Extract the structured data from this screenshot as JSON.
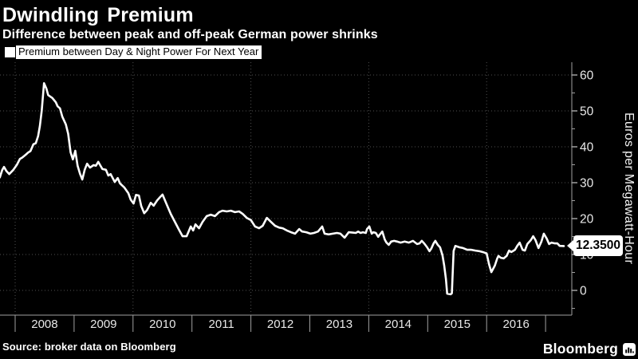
{
  "header": {
    "title": "Dwindling Premium",
    "subtitle": "Difference between peak and off-peak German power shrinks"
  },
  "legend": {
    "label": "Premium between Day & Night Power For Next Year"
  },
  "footer": {
    "source": "Source: broker data on Bloomberg",
    "brand": "Bloomberg"
  },
  "colors": {
    "background": "#000000",
    "line": "#ffffff",
    "grid": "#515151",
    "axis": "#a0a0a0",
    "tick_label": "#e8e8e8",
    "callout_bg": "#ffffff",
    "callout_text": "#000000"
  },
  "chart_data": {
    "type": "line",
    "title": "Dwindling Premium",
    "series_name": "Premium between Day & Night Power For Next Year",
    "ylabel": "Euros per Megawatt-Hour",
    "last_price_label": "12.3500",
    "last_price_value": 12.35,
    "ylim": [
      -7,
      63.5
    ],
    "xlim": [
      2007.74,
      2017.45
    ],
    "y_ticks": [
      0,
      10,
      20,
      30,
      40,
      50,
      60
    ],
    "y_minor_ticks": [
      -5,
      5,
      15,
      25,
      35,
      45,
      55
    ],
    "x_tick_years": [
      2008,
      2009,
      2010,
      2011,
      2012,
      2013,
      2014,
      2015,
      2016,
      2017
    ],
    "x_band_labels": [
      "2008",
      "2009",
      "2010",
      "2011",
      "2012",
      "2013",
      "2014",
      "2015",
      "2016"
    ],
    "x_gridline_years": [
      2008,
      2010,
      2012,
      2014,
      2016
    ],
    "grid": true,
    "legend_position": "top-left",
    "points": [
      [
        2007.74,
        31.5
      ],
      [
        2007.78,
        33.5
      ],
      [
        2007.81,
        34.4
      ],
      [
        2007.85,
        33.3
      ],
      [
        2007.9,
        32.4
      ],
      [
        2007.97,
        33.6
      ],
      [
        2008.03,
        35.0
      ],
      [
        2008.08,
        36.6
      ],
      [
        2008.12,
        37.0
      ],
      [
        2008.18,
        37.8
      ],
      [
        2008.22,
        38.4
      ],
      [
        2008.26,
        38.8
      ],
      [
        2008.31,
        40.7
      ],
      [
        2008.35,
        41.0
      ],
      [
        2008.39,
        43.0
      ],
      [
        2008.42,
        45.8
      ],
      [
        2008.45,
        50.0
      ],
      [
        2008.49,
        57.7
      ],
      [
        2008.53,
        56.2
      ],
      [
        2008.56,
        54.4
      ],
      [
        2008.63,
        53.6
      ],
      [
        2008.69,
        52.4
      ],
      [
        2008.72,
        51.3
      ],
      [
        2008.76,
        50.7
      ],
      [
        2008.8,
        48.4
      ],
      [
        2008.86,
        46.2
      ],
      [
        2008.9,
        43.6
      ],
      [
        2008.94,
        38.5
      ],
      [
        2008.98,
        36.5
      ],
      [
        2009.02,
        38.9
      ],
      [
        2009.06,
        34.7
      ],
      [
        2009.1,
        32.5
      ],
      [
        2009.14,
        30.9
      ],
      [
        2009.18,
        33.6
      ],
      [
        2009.22,
        35.3
      ],
      [
        2009.27,
        34.2
      ],
      [
        2009.33,
        34.9
      ],
      [
        2009.37,
        34.7
      ],
      [
        2009.41,
        35.8
      ],
      [
        2009.48,
        33.8
      ],
      [
        2009.54,
        33.6
      ],
      [
        2009.58,
        32.0
      ],
      [
        2009.62,
        32.4
      ],
      [
        2009.69,
        30.2
      ],
      [
        2009.74,
        31.3
      ],
      [
        2009.78,
        29.8
      ],
      [
        2009.85,
        28.7
      ],
      [
        2009.92,
        27.1
      ],
      [
        2009.96,
        25.3
      ],
      [
        2010.01,
        24.2
      ],
      [
        2010.05,
        26.6
      ],
      [
        2010.1,
        26.4
      ],
      [
        2010.14,
        23.5
      ],
      [
        2010.19,
        21.5
      ],
      [
        2010.24,
        22.4
      ],
      [
        2010.3,
        24.4
      ],
      [
        2010.35,
        23.6
      ],
      [
        2010.41,
        25.1
      ],
      [
        2010.46,
        26.0
      ],
      [
        2010.5,
        26.7
      ],
      [
        2010.57,
        24.0
      ],
      [
        2010.64,
        21.3
      ],
      [
        2010.71,
        19.1
      ],
      [
        2010.78,
        16.9
      ],
      [
        2010.84,
        15.1
      ],
      [
        2010.91,
        15.1
      ],
      [
        2010.98,
        17.8
      ],
      [
        2011.02,
        16.7
      ],
      [
        2011.06,
        18.4
      ],
      [
        2011.12,
        17.3
      ],
      [
        2011.18,
        19.1
      ],
      [
        2011.25,
        20.7
      ],
      [
        2011.32,
        21.1
      ],
      [
        2011.39,
        20.7
      ],
      [
        2011.46,
        21.8
      ],
      [
        2011.52,
        22.2
      ],
      [
        2011.59,
        22.0
      ],
      [
        2011.66,
        22.2
      ],
      [
        2011.73,
        21.8
      ],
      [
        2011.8,
        22.0
      ],
      [
        2011.86,
        21.3
      ],
      [
        2011.93,
        20.2
      ],
      [
        2012.0,
        19.6
      ],
      [
        2012.07,
        17.8
      ],
      [
        2012.14,
        17.3
      ],
      [
        2012.2,
        18.0
      ],
      [
        2012.27,
        20.2
      ],
      [
        2012.34,
        19.1
      ],
      [
        2012.41,
        18.0
      ],
      [
        2012.48,
        17.5
      ],
      [
        2012.54,
        17.3
      ],
      [
        2012.61,
        16.7
      ],
      [
        2012.68,
        16.2
      ],
      [
        2012.75,
        15.8
      ],
      [
        2012.82,
        17.1
      ],
      [
        2012.87,
        16.4
      ],
      [
        2012.94,
        16.2
      ],
      [
        2013.01,
        15.8
      ],
      [
        2013.07,
        16.0
      ],
      [
        2013.14,
        16.4
      ],
      [
        2013.21,
        17.8
      ],
      [
        2013.25,
        15.8
      ],
      [
        2013.32,
        15.6
      ],
      [
        2013.39,
        15.8
      ],
      [
        2013.46,
        16.0
      ],
      [
        2013.52,
        15.8
      ],
      [
        2013.59,
        14.7
      ],
      [
        2013.66,
        16.2
      ],
      [
        2013.73,
        16.1
      ],
      [
        2013.78,
        16.0
      ],
      [
        2013.82,
        16.4
      ],
      [
        2013.86,
        16.0
      ],
      [
        2013.9,
        16.2
      ],
      [
        2013.95,
        16.0
      ],
      [
        2013.97,
        17.1
      ],
      [
        2014.01,
        17.8
      ],
      [
        2014.05,
        15.8
      ],
      [
        2014.08,
        16.2
      ],
      [
        2014.12,
        16.0
      ],
      [
        2014.16,
        14.9
      ],
      [
        2014.19,
        15.6
      ],
      [
        2014.23,
        16.4
      ],
      [
        2014.27,
        14.2
      ],
      [
        2014.3,
        13.3
      ],
      [
        2014.34,
        12.7
      ],
      [
        2014.38,
        13.6
      ],
      [
        2014.43,
        13.8
      ],
      [
        2014.48,
        13.6
      ],
      [
        2014.54,
        13.3
      ],
      [
        2014.61,
        13.6
      ],
      [
        2014.68,
        13.3
      ],
      [
        2014.75,
        13.8
      ],
      [
        2014.82,
        12.9
      ],
      [
        2014.86,
        13.1
      ],
      [
        2014.9,
        13.8
      ],
      [
        2014.94,
        13.1
      ],
      [
        2014.99,
        12.0
      ],
      [
        2015.03,
        10.9
      ],
      [
        2015.06,
        11.6
      ],
      [
        2015.1,
        13.1
      ],
      [
        2015.13,
        13.8
      ],
      [
        2015.17,
        12.7
      ],
      [
        2015.21,
        12.0
      ],
      [
        2015.25,
        9.8
      ],
      [
        2015.28,
        6.9
      ],
      [
        2015.31,
        3.1
      ],
      [
        2015.33,
        -0.9
      ],
      [
        2015.39,
        -1.1
      ],
      [
        2015.41,
        -0.8
      ],
      [
        2015.44,
        11.0
      ],
      [
        2015.47,
        12.4
      ],
      [
        2015.54,
        12.0
      ],
      [
        2015.6,
        11.8
      ],
      [
        2015.67,
        11.3
      ],
      [
        2015.74,
        11.3
      ],
      [
        2015.81,
        11.1
      ],
      [
        2015.88,
        10.9
      ],
      [
        2015.95,
        10.6
      ],
      [
        2016.0,
        10.3
      ],
      [
        2016.04,
        7.3
      ],
      [
        2016.08,
        5.1
      ],
      [
        2016.14,
        6.9
      ],
      [
        2016.18,
        8.9
      ],
      [
        2016.2,
        9.6
      ],
      [
        2016.24,
        9.1
      ],
      [
        2016.29,
        8.9
      ],
      [
        2016.34,
        9.6
      ],
      [
        2016.38,
        11.1
      ],
      [
        2016.42,
        10.7
      ],
      [
        2016.48,
        11.3
      ],
      [
        2016.52,
        12.4
      ],
      [
        2016.56,
        13.3
      ],
      [
        2016.61,
        11.3
      ],
      [
        2016.65,
        11.1
      ],
      [
        2016.69,
        12.9
      ],
      [
        2016.75,
        14.0
      ],
      [
        2016.79,
        15.1
      ],
      [
        2016.83,
        14.0
      ],
      [
        2016.88,
        11.8
      ],
      [
        2016.93,
        13.6
      ],
      [
        2016.97,
        15.8
      ],
      [
        2017.02,
        14.4
      ],
      [
        2017.06,
        12.9
      ],
      [
        2017.1,
        13.3
      ],
      [
        2017.16,
        13.1
      ],
      [
        2017.2,
        13.1
      ],
      [
        2017.24,
        12.4
      ],
      [
        2017.31,
        12.35
      ]
    ]
  }
}
